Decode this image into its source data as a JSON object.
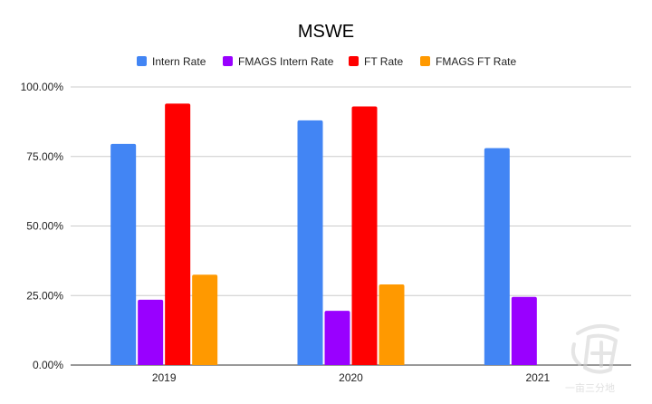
{
  "chart_data": {
    "type": "bar",
    "title": "MSWE",
    "categories": [
      "2019",
      "2020",
      "2021"
    ],
    "series": [
      {
        "name": "Intern Rate",
        "color": "#4285f4",
        "values": [
          79.5,
          88.0,
          78.0
        ]
      },
      {
        "name": "FMAGS Intern Rate",
        "color": "#9900ff",
        "values": [
          23.5,
          19.5,
          24.5
        ]
      },
      {
        "name": "FT Rate",
        "color": "#ff0000",
        "values": [
          94.0,
          93.0,
          null
        ]
      },
      {
        "name": "FMAGS FT Rate",
        "color": "#ff9900",
        "values": [
          32.5,
          29.0,
          null
        ]
      }
    ],
    "ylim": [
      0,
      100
    ],
    "yticks": [
      "0.00%",
      "25.00%",
      "50.00%",
      "75.00%",
      "100.00%"
    ],
    "grid": true,
    "legend_position": "top-center"
  },
  "watermark": {
    "text": "一亩三分地"
  }
}
